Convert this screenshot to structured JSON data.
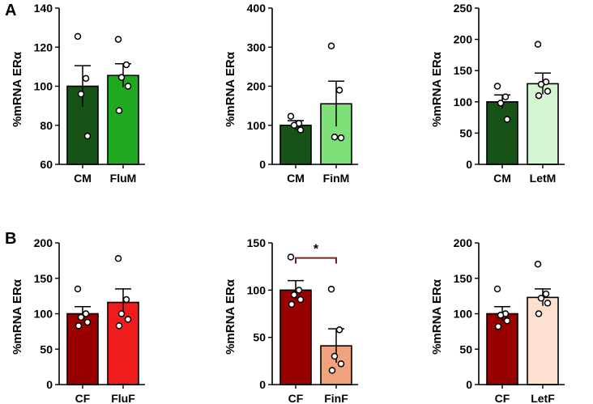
{
  "panels": [
    {
      "letter": "A"
    },
    {
      "letter": "B"
    }
  ],
  "chart_data": [
    {
      "type": "bar",
      "panel": "A",
      "ylabel": "%mRNA ERα",
      "ylim": [
        60,
        140
      ],
      "yticks": [
        60,
        80,
        100,
        120,
        140
      ],
      "categories": [
        "CM",
        "FluM"
      ],
      "values": [
        100,
        105.5
      ],
      "errors": [
        10.5,
        6
      ],
      "colors": [
        "#175217",
        "#21a821"
      ],
      "points": [
        [
          125.5,
          104,
          96,
          74.5
        ],
        [
          124,
          111,
          104.5,
          100,
          87.5
        ]
      ],
      "significance": null
    },
    {
      "type": "bar",
      "panel": "A",
      "ylabel": "%mRNA ERα",
      "ylim": [
        0,
        400
      ],
      "yticks": [
        0,
        100,
        200,
        300,
        400
      ],
      "categories": [
        "CM",
        "FinM"
      ],
      "values": [
        100,
        155
      ],
      "errors": [
        12,
        58
      ],
      "colors": [
        "#175217",
        "#7fe07a"
      ],
      "points": [
        [
          123,
          105,
          100,
          88
        ],
        [
          303,
          190,
          70,
          68
        ]
      ],
      "significance": null
    },
    {
      "type": "bar",
      "panel": "A",
      "ylabel": "%mRNA ERα",
      "ylim": [
        0,
        250
      ],
      "yticks": [
        0,
        50,
        100,
        150,
        200,
        250
      ],
      "categories": [
        "CM",
        "LetM"
      ],
      "values": [
        100,
        129
      ],
      "errors": [
        11,
        17
      ],
      "colors": [
        "#175217",
        "#d3f5d3"
      ],
      "points": [
        [
          125,
          108,
          98,
          72
        ],
        [
          192,
          132,
          128,
          117,
          110
        ]
      ],
      "significance": null
    },
    {
      "type": "bar",
      "panel": "B",
      "ylabel": "%mRNA ERα",
      "ylim": [
        0,
        200
      ],
      "yticks": [
        0,
        50,
        100,
        150,
        200
      ],
      "categories": [
        "CF",
        "FluF"
      ],
      "values": [
        100,
        116
      ],
      "errors": [
        10,
        19
      ],
      "colors": [
        "#990000",
        "#ee1c1c"
      ],
      "points": [
        [
          135,
          100,
          95,
          88,
          83
        ],
        [
          178,
          120,
          100,
          92,
          83
        ]
      ],
      "significance": null
    },
    {
      "type": "bar",
      "panel": "B",
      "ylabel": "%mRNA ERα",
      "ylim": [
        0,
        150
      ],
      "yticks": [
        0,
        50,
        100,
        150
      ],
      "categories": [
        "CF",
        "FinF"
      ],
      "values": [
        100,
        41
      ],
      "errors": [
        10,
        18
      ],
      "colors": [
        "#990000",
        "#f0a27c"
      ],
      "points": [
        [
          135,
          100,
          95,
          90,
          85
        ],
        [
          101,
          58,
          30,
          22,
          15
        ]
      ],
      "significance": {
        "label": "*",
        "from": 0,
        "to": 1,
        "y": 134,
        "color": "#6b2a1a"
      }
    },
    {
      "type": "bar",
      "panel": "B",
      "ylabel": "%mRNA ERα",
      "ylim": [
        0,
        200
      ],
      "yticks": [
        0,
        50,
        100,
        150,
        200
      ],
      "categories": [
        "CF",
        "LetF"
      ],
      "values": [
        100,
        123
      ],
      "errors": [
        10,
        12
      ],
      "colors": [
        "#990000",
        "#fde0cf"
      ],
      "points": [
        [
          135,
          100,
          98,
          90,
          82
        ],
        [
          170,
          128,
          122,
          115,
          100
        ]
      ],
      "significance": null
    }
  ]
}
